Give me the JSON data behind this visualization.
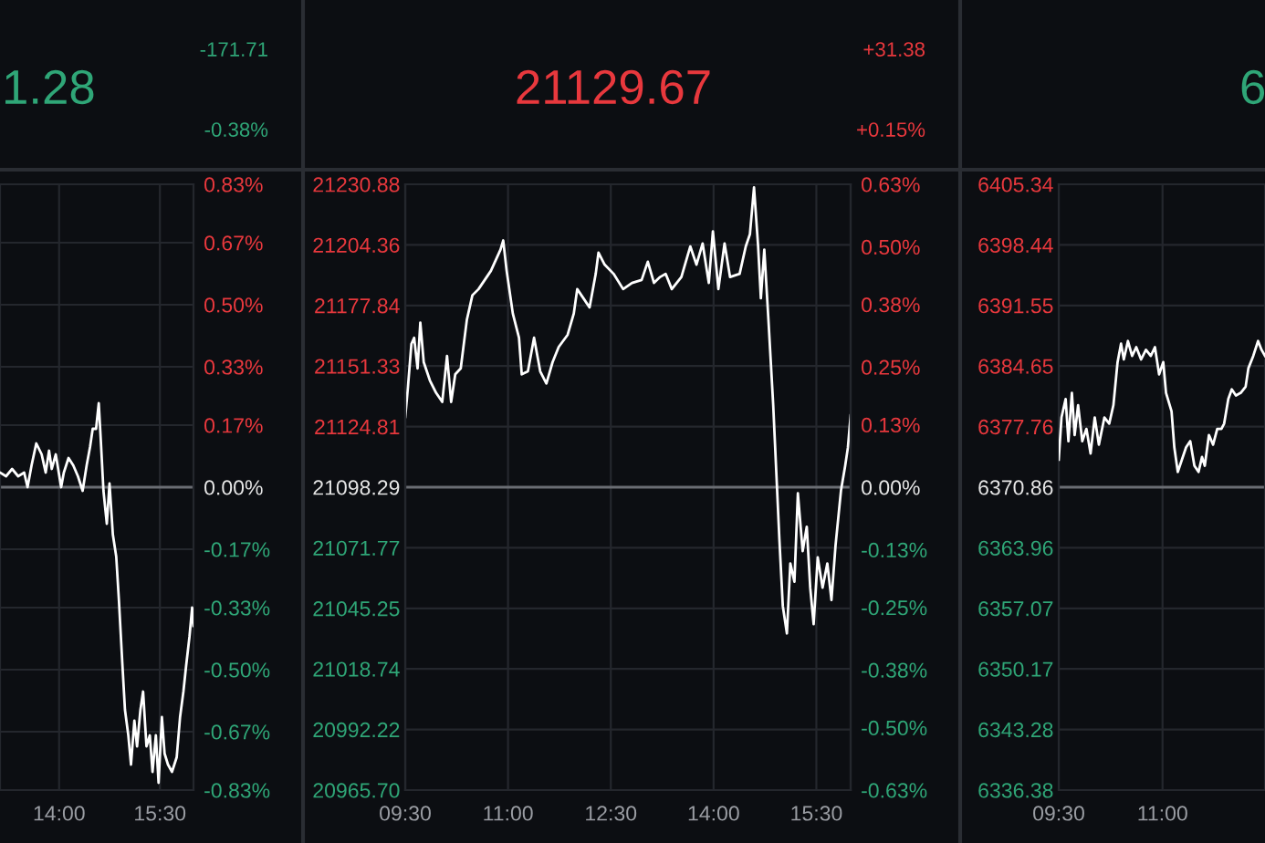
{
  "chart_data": [
    {
      "type": "line",
      "title": "1.28",
      "annotations": [
        "-171.71",
        "-0.38%"
      ],
      "grid": true,
      "x": [
        13.12,
        13.21,
        13.3,
        13.39,
        13.48,
        13.53,
        13.59,
        13.66,
        13.74,
        13.8,
        13.85,
        13.89,
        13.95,
        14.03,
        14.07,
        14.14,
        14.21,
        14.28,
        14.35,
        14.41,
        14.46,
        14.5,
        14.55,
        14.59,
        14.62,
        14.66,
        14.71,
        14.75,
        14.8,
        14.85,
        14.89,
        14.94,
        14.98,
        15.03,
        15.07,
        15.12,
        15.16,
        15.21,
        15.25,
        15.3,
        15.35,
        15.39,
        15.44,
        15.48,
        15.53,
        15.57,
        15.62,
        15.68,
        15.75,
        15.8,
        15.85,
        15.89,
        15.94,
        15.98,
        16.0
      ],
      "series": [
        {
          "color": "#ffffff",
          "axis": "y2",
          "values": [
            0.04,
            0.03,
            0.05,
            0.03,
            0.04,
            0.0,
            0.06,
            0.12,
            0.09,
            0.04,
            0.1,
            0.05,
            0.09,
            0.0,
            0.04,
            0.08,
            0.06,
            0.03,
            -0.01,
            0.06,
            0.11,
            0.16,
            0.16,
            0.23,
            0.13,
            -0.01,
            -0.1,
            0.01,
            -0.13,
            -0.19,
            -0.31,
            -0.48,
            -0.61,
            -0.68,
            -0.76,
            -0.64,
            -0.71,
            -0.61,
            -0.56,
            -0.71,
            -0.68,
            -0.78,
            -0.68,
            -0.81,
            -0.63,
            -0.73,
            -0.76,
            -0.78,
            -0.74,
            -0.63,
            -0.56,
            -0.49,
            -0.41,
            -0.33,
            -0.38
          ]
        }
      ],
      "xlim": [
        13.12,
        16.0
      ],
      "xticks": [
        {
          "value": 14,
          "label": "14:00"
        },
        {
          "value": 15.5,
          "label": "15:30"
        }
      ],
      "y2lim": [
        -0.83,
        0.83
      ],
      "y2ticks": [
        {
          "value": 0.83,
          "label": "0.83%"
        },
        {
          "value": 0.67,
          "label": "0.67%"
        },
        {
          "value": 0.5,
          "label": "0.50%"
        },
        {
          "value": 0.33,
          "label": "0.33%"
        },
        {
          "value": 0.17,
          "label": "0.17%"
        },
        {
          "value": 0,
          "label": "0.00%"
        },
        {
          "value": -0.17,
          "label": "-0.17%"
        },
        {
          "value": -0.33,
          "label": "-0.33%"
        },
        {
          "value": -0.5,
          "label": "-0.50%"
        },
        {
          "value": -0.67,
          "label": "-0.67%"
        },
        {
          "value": -0.83,
          "label": "-0.83%"
        }
      ],
      "ref_lines": [
        {
          "axis": "y2",
          "value": 0,
          "color": "#6a6d73"
        }
      ]
    },
    {
      "type": "line",
      "title": "21129.67",
      "annotations": [
        "+31.38",
        "+0.15%"
      ],
      "grid": true,
      "x": [
        9.5,
        9.54,
        9.59,
        9.63,
        9.68,
        9.72,
        9.77,
        9.86,
        9.95,
        10.04,
        10.11,
        10.17,
        10.23,
        10.31,
        10.4,
        10.48,
        10.57,
        10.66,
        10.75,
        10.89,
        10.93,
        10.98,
        11.07,
        11.16,
        11.2,
        11.29,
        11.38,
        11.47,
        11.56,
        11.65,
        11.74,
        11.87,
        11.96,
        12.01,
        12.1,
        12.19,
        12.28,
        12.32,
        12.41,
        12.54,
        12.68,
        12.81,
        12.95,
        13.04,
        13.13,
        13.22,
        13.3,
        13.39,
        13.53,
        13.66,
        13.75,
        13.84,
        13.93,
        13.99,
        14.07,
        14.16,
        14.24,
        14.38,
        14.47,
        14.53,
        14.59,
        14.65,
        14.69,
        14.74,
        14.8,
        14.87,
        14.96,
        15.01,
        15.07,
        15.12,
        15.18,
        15.23,
        15.3,
        15.36,
        15.41,
        15.46,
        15.52,
        15.59,
        15.66,
        15.72,
        15.78,
        15.86,
        15.92,
        15.96,
        16.0
      ],
      "series": [
        {
          "color": "#ffffff",
          "axis": "y",
          "values": [
            21129.0,
            21142.3,
            21161.0,
            21163.7,
            21150.3,
            21170.3,
            21153.0,
            21145.0,
            21139.6,
            21135.6,
            21155.7,
            21135.6,
            21147.7,
            21150.3,
            21171.7,
            21182.3,
            21185.0,
            21189.0,
            21193.0,
            21202.3,
            21206.3,
            21193.0,
            21174.3,
            21163.7,
            21147.7,
            21149.0,
            21163.7,
            21149.0,
            21143.7,
            21153.0,
            21159.7,
            21165.0,
            21174.3,
            21185.0,
            21181.0,
            21177.0,
            21191.7,
            21201.0,
            21195.7,
            21191.7,
            21185.0,
            21187.7,
            21189.0,
            21197.0,
            21187.7,
            21190.3,
            21191.7,
            21185.0,
            21190.3,
            21203.7,
            21195.7,
            21205.0,
            21187.7,
            21210.3,
            21185.0,
            21205.0,
            21190.3,
            21191.7,
            21203.7,
            21209.0,
            21229.5,
            21203.7,
            21181.0,
            21202.3,
            21171.7,
            21134.3,
            21075.6,
            21046.3,
            21034.3,
            21064.9,
            21056.9,
            21095.6,
            21070.3,
            21081.0,
            21054.3,
            21038.3,
            21067.6,
            21054.3,
            21064.9,
            21048.9,
            21072.9,
            21097.0,
            21107.6,
            21115.6,
            21129.7
          ]
        }
      ],
      "xlim": [
        9.5,
        16.0
      ],
      "xticks": [
        {
          "value": 9.5,
          "label": "09:30"
        },
        {
          "value": 11,
          "label": "11:00"
        },
        {
          "value": 12.5,
          "label": "12:30"
        },
        {
          "value": 14,
          "label": "14:00"
        },
        {
          "value": 15.5,
          "label": "15:30"
        }
      ],
      "ylim": [
        20965.7,
        21230.88
      ],
      "yticks": [
        {
          "value": 21230.88,
          "label": "21230.88"
        },
        {
          "value": 21204.36,
          "label": "21204.36"
        },
        {
          "value": 21177.84,
          "label": "21177.84"
        },
        {
          "value": 21151.33,
          "label": "21151.33"
        },
        {
          "value": 21124.81,
          "label": "21124.81"
        },
        {
          "value": 21098.29,
          "label": "21098.29"
        },
        {
          "value": 21071.77,
          "label": "21071.77"
        },
        {
          "value": 21045.25,
          "label": "21045.25"
        },
        {
          "value": 21018.74,
          "label": "21018.74"
        },
        {
          "value": 20992.22,
          "label": "20992.22"
        },
        {
          "value": 20965.7,
          "label": "20965.70"
        }
      ],
      "y2lim": [
        -0.63,
        0.63
      ],
      "y2ticks": [
        {
          "value": 0.63,
          "label": "0.63%"
        },
        {
          "value": 0.5,
          "label": "0.50%"
        },
        {
          "value": 0.38,
          "label": "0.38%"
        },
        {
          "value": 0.25,
          "label": "0.25%"
        },
        {
          "value": 0.13,
          "label": "0.13%"
        },
        {
          "value": 0,
          "label": "0.00%"
        },
        {
          "value": -0.13,
          "label": "-0.13%"
        },
        {
          "value": -0.25,
          "label": "-0.25%"
        },
        {
          "value": -0.38,
          "label": "-0.38%"
        },
        {
          "value": -0.5,
          "label": "-0.50%"
        },
        {
          "value": -0.63,
          "label": "-0.63%"
        }
      ],
      "ref_lines": [
        {
          "axis": "y",
          "value": 21098.29,
          "color": "#6a6d73"
        }
      ]
    },
    {
      "type": "line",
      "title": "6",
      "grid": true,
      "x": [
        9.5,
        9.54,
        9.6,
        9.64,
        9.69,
        9.73,
        9.78,
        9.84,
        9.9,
        9.96,
        10.02,
        10.08,
        10.16,
        10.23,
        10.29,
        10.35,
        10.4,
        10.44,
        10.5,
        10.56,
        10.62,
        10.69,
        10.76,
        10.83,
        10.89,
        10.95,
        11.01,
        11.05,
        11.13,
        11.17,
        11.22,
        11.28,
        11.34,
        11.4,
        11.46,
        11.52,
        11.57,
        11.61,
        11.67,
        11.73,
        11.79,
        11.85,
        11.89,
        11.95,
        12.0,
        12.06,
        12.13,
        12.2,
        12.24,
        12.31,
        12.38,
        12.43,
        12.48
      ],
      "series": [
        {
          "color": "#ffffff",
          "axis": "y",
          "values": [
            6374.0,
            6378.8,
            6380.9,
            6376.1,
            6381.6,
            6376.8,
            6380.2,
            6376.1,
            6377.5,
            6374.7,
            6378.8,
            6375.7,
            6378.8,
            6378.1,
            6380.2,
            6385.1,
            6387.2,
            6385.4,
            6387.5,
            6385.8,
            6386.8,
            6385.4,
            6386.5,
            6385.8,
            6386.8,
            6383.7,
            6385.1,
            6381.6,
            6379.5,
            6375.4,
            6372.6,
            6374.0,
            6375.4,
            6376.1,
            6373.3,
            6372.6,
            6374.3,
            6373.3,
            6376.8,
            6375.7,
            6377.5,
            6377.5,
            6378.1,
            6380.9,
            6382.0,
            6381.3,
            6381.6,
            6382.3,
            6384.4,
            6385.8,
            6387.5,
            6386.5,
            6385.8
          ]
        }
      ],
      "xlim": [
        9.5,
        12.48
      ],
      "xticks": [
        {
          "value": 9.5,
          "label": "09:30"
        },
        {
          "value": 11,
          "label": "11:00"
        }
      ],
      "ylim": [
        6336.38,
        6405.34
      ],
      "yticks": [
        {
          "value": 6405.34,
          "label": "6405.34"
        },
        {
          "value": 6398.44,
          "label": "6398.44"
        },
        {
          "value": 6391.55,
          "label": "6391.55"
        },
        {
          "value": 6384.65,
          "label": "6384.65"
        },
        {
          "value": 6377.76,
          "label": "6377.76"
        },
        {
          "value": 6370.86,
          "label": "6370.86"
        },
        {
          "value": 6363.96,
          "label": "6363.96"
        },
        {
          "value": 6357.07,
          "label": "6357.07"
        },
        {
          "value": 6350.17,
          "label": "6350.17"
        },
        {
          "value": 6343.28,
          "label": "6343.28"
        },
        {
          "value": 6336.38,
          "label": "6336.38"
        }
      ],
      "ref_lines": [
        {
          "axis": "y",
          "value": 6370.86,
          "color": "#6a6d73"
        }
      ]
    }
  ]
}
